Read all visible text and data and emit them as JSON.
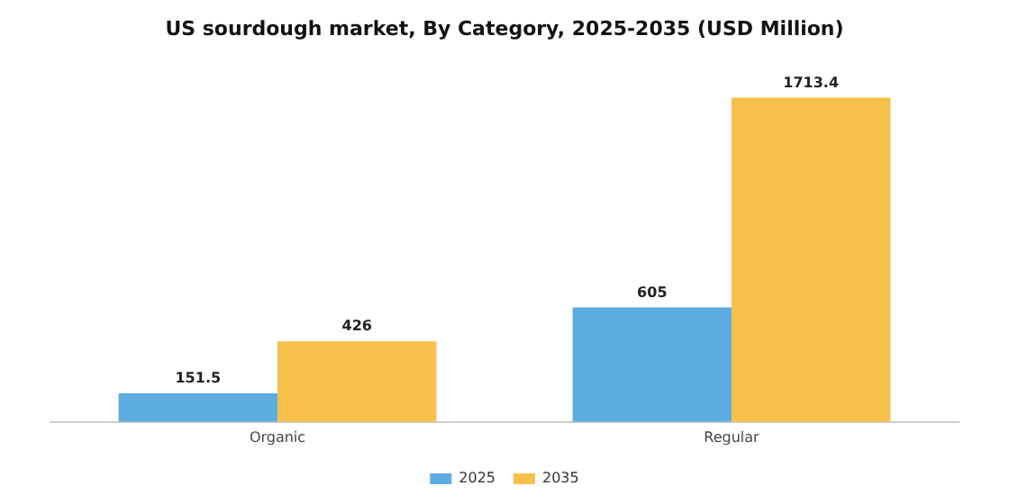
{
  "chart_data": {
    "type": "bar",
    "title": "US sourdough market, By Category, 2025-2035 (USD Million)",
    "categories": [
      "Organic",
      "Regular"
    ],
    "series": [
      {
        "name": "2025",
        "color": "#5dade2",
        "values": [
          151.5,
          605
        ]
      },
      {
        "name": "2035",
        "color": "#f7c04a",
        "values": [
          426,
          1713.4
        ]
      }
    ],
    "data_labels": true,
    "legend": "bottom",
    "grid": false
  }
}
